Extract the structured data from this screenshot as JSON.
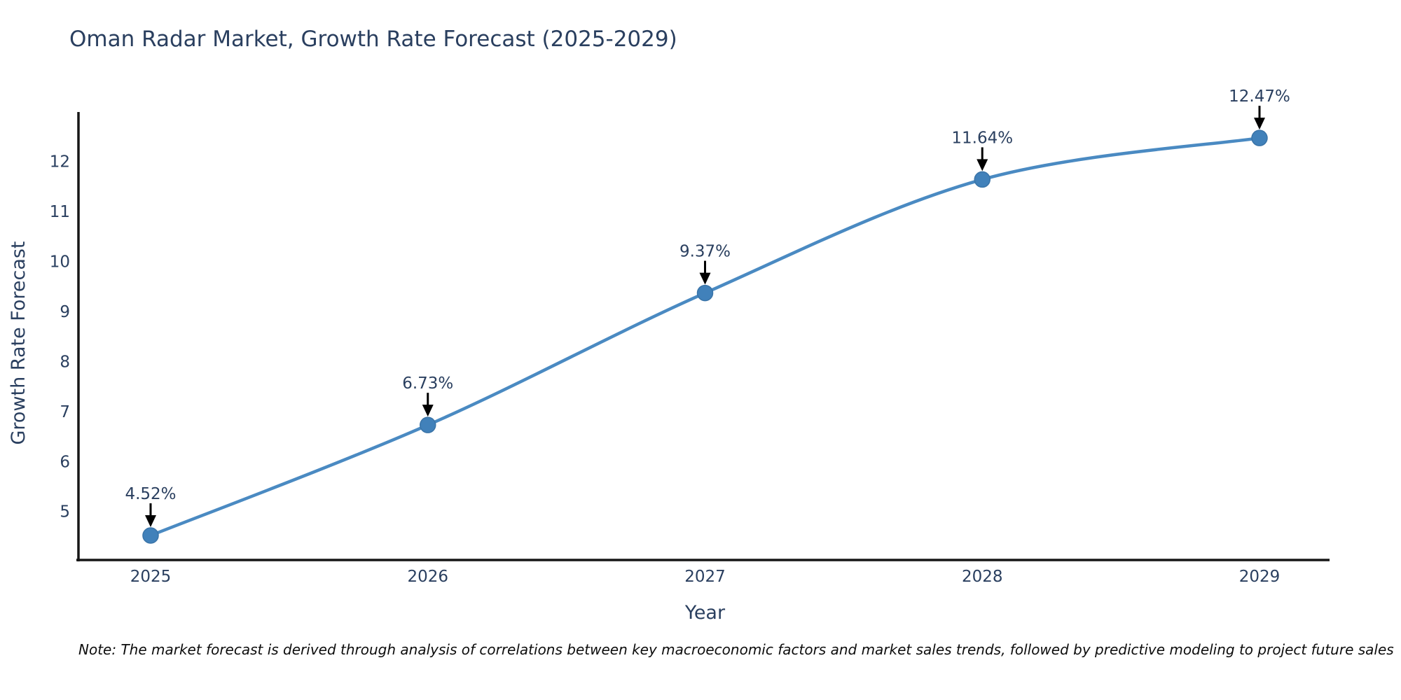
{
  "title": "Oman Radar Market, Growth Rate Forecast (2025-2029)",
  "note": "Note: The market forecast is derived through analysis of correlations between key macroeconomic factors and market sales trends, followed by predictive modeling to project future sales",
  "chart_data": {
    "type": "line",
    "title": "Oman Radar Market, Growth Rate Forecast (2025-2029)",
    "x": [
      "2025",
      "2026",
      "2027",
      "2028",
      "2029"
    ],
    "series": [
      {
        "name": "Growth Rate Forecast",
        "values": [
          4.52,
          6.73,
          9.37,
          11.64,
          12.47
        ]
      }
    ],
    "point_labels": [
      "4.52%",
      "6.73%",
      "9.37%",
      "11.64%",
      "12.47%"
    ],
    "xlabel": "Year",
    "ylabel": "Growth Rate Forecast",
    "yticks": [
      5,
      6,
      7,
      8,
      9,
      10,
      11,
      12
    ],
    "ylim": [
      4.03,
      12.99
    ],
    "grid": false,
    "legend": "none",
    "line_shape": "spline",
    "annotation_style": "text-with-down-arrow",
    "colors": {
      "line": "#4a8ac2",
      "marker_fill": "#4181ba",
      "marker_stroke": "#3a74a8",
      "axis": "#161616",
      "text": "#2a3f5f",
      "annotation_text": "#2a3f5f",
      "annotation_arrow": "#000000",
      "note_text": "#0d0d0d",
      "background": "#ffffff"
    }
  }
}
